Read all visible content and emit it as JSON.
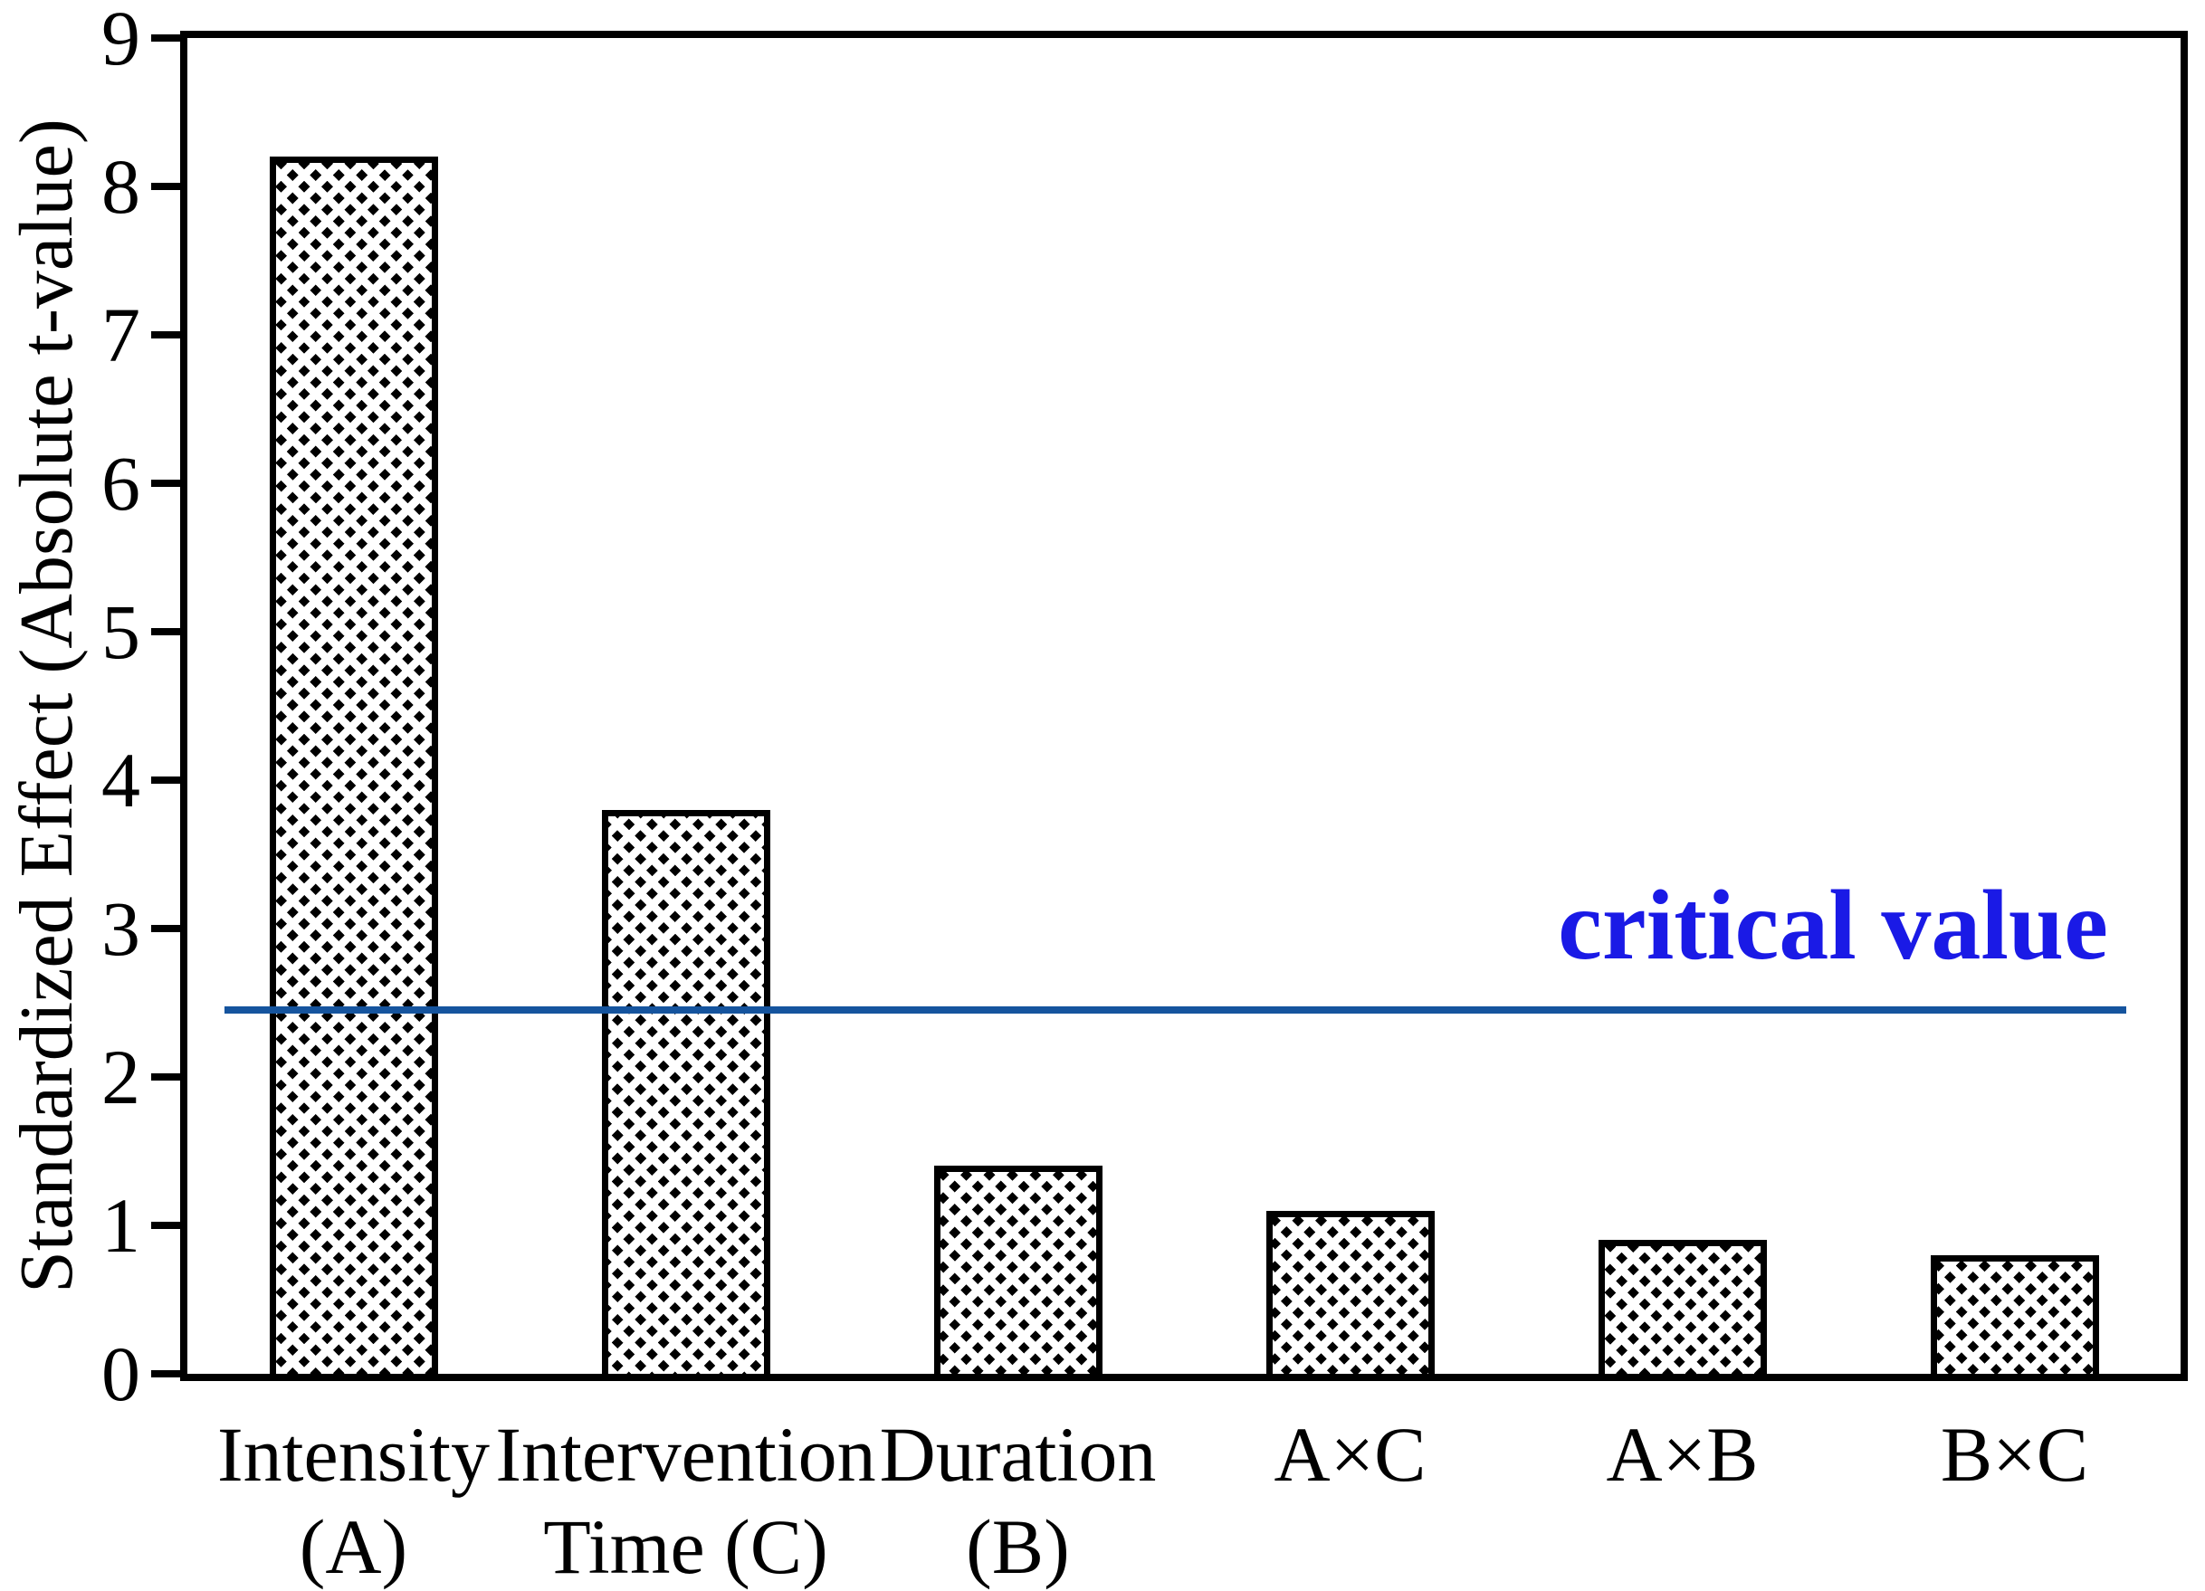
{
  "chart_data": {
    "type": "bar",
    "title": "",
    "xlabel": "",
    "ylabel": "Standardized Effect (Absolute t-value)",
    "ylim": [
      0,
      9
    ],
    "yticks": [
      "0",
      "1",
      "2",
      "3",
      "4",
      "5",
      "6",
      "7",
      "8",
      "9"
    ],
    "grid": false,
    "legend": null,
    "categories": [
      "Intensity (A)",
      "Intervention Time (C)",
      "Duration (B)",
      "A×C",
      "A×B",
      "B×C"
    ],
    "category_lines": [
      [
        "Intensity",
        "(A)"
      ],
      [
        "Intervention",
        "Time (C)"
      ],
      [
        "Duration",
        "(B)"
      ],
      [
        "A×C"
      ],
      [
        "A×B"
      ],
      [
        "B×C"
      ]
    ],
    "values": [
      8.2,
      3.8,
      1.4,
      1.1,
      0.9,
      0.8
    ],
    "bar_style": {
      "fill": "#ffffff",
      "hatch": "diagonal-forward-slash",
      "edge_color": "#000000"
    },
    "reference_line": {
      "label": "critical value",
      "value": 2.45,
      "line_color": "#15549E",
      "label_color": "#1A1AE6"
    }
  }
}
